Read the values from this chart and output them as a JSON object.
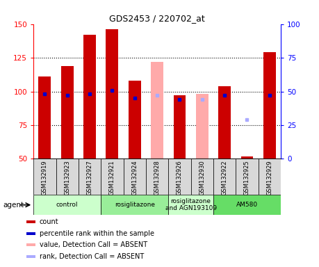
{
  "title": "GDS2453 / 220702_at",
  "samples": [
    "GSM132919",
    "GSM132923",
    "GSM132927",
    "GSM132921",
    "GSM132924",
    "GSM132928",
    "GSM132926",
    "GSM132930",
    "GSM132922",
    "GSM132925",
    "GSM132929"
  ],
  "count_values": [
    111,
    119,
    142,
    146,
    108,
    null,
    97,
    null,
    104,
    52,
    129
  ],
  "rank_values": [
    48,
    47,
    48,
    51,
    45,
    null,
    44,
    null,
    47,
    null,
    47
  ],
  "absent_value_values": [
    null,
    null,
    null,
    null,
    null,
    122,
    null,
    98,
    null,
    null,
    null
  ],
  "absent_rank_values": [
    null,
    null,
    null,
    null,
    null,
    47,
    null,
    44,
    null,
    29,
    null
  ],
  "ylim_left": [
    50,
    150
  ],
  "ylim_right": [
    0,
    100
  ],
  "yticks_left": [
    50,
    75,
    100,
    125,
    150
  ],
  "yticks_right": [
    0,
    25,
    50,
    75,
    100
  ],
  "groups": [
    {
      "label": "control",
      "start": 0,
      "end": 2,
      "color": "#ccffcc"
    },
    {
      "label": "rosiglitazone",
      "start": 3,
      "end": 5,
      "color": "#99ee99"
    },
    {
      "label": "rosiglitazone\nand AGN193109",
      "start": 6,
      "end": 7,
      "color": "#ccffcc"
    },
    {
      "label": "AM580",
      "start": 8,
      "end": 10,
      "color": "#66dd66"
    }
  ],
  "bar_width": 0.55,
  "count_color": "#cc0000",
  "rank_color": "#0000cc",
  "absent_value_color": "#ffaaaa",
  "absent_rank_color": "#aaaaff",
  "bar_bottom": 50,
  "legend_items": [
    {
      "label": "count",
      "color": "#cc0000"
    },
    {
      "label": "percentile rank within the sample",
      "color": "#0000cc"
    },
    {
      "label": "value, Detection Call = ABSENT",
      "color": "#ffaaaa"
    },
    {
      "label": "rank, Detection Call = ABSENT",
      "color": "#aaaaff"
    }
  ]
}
